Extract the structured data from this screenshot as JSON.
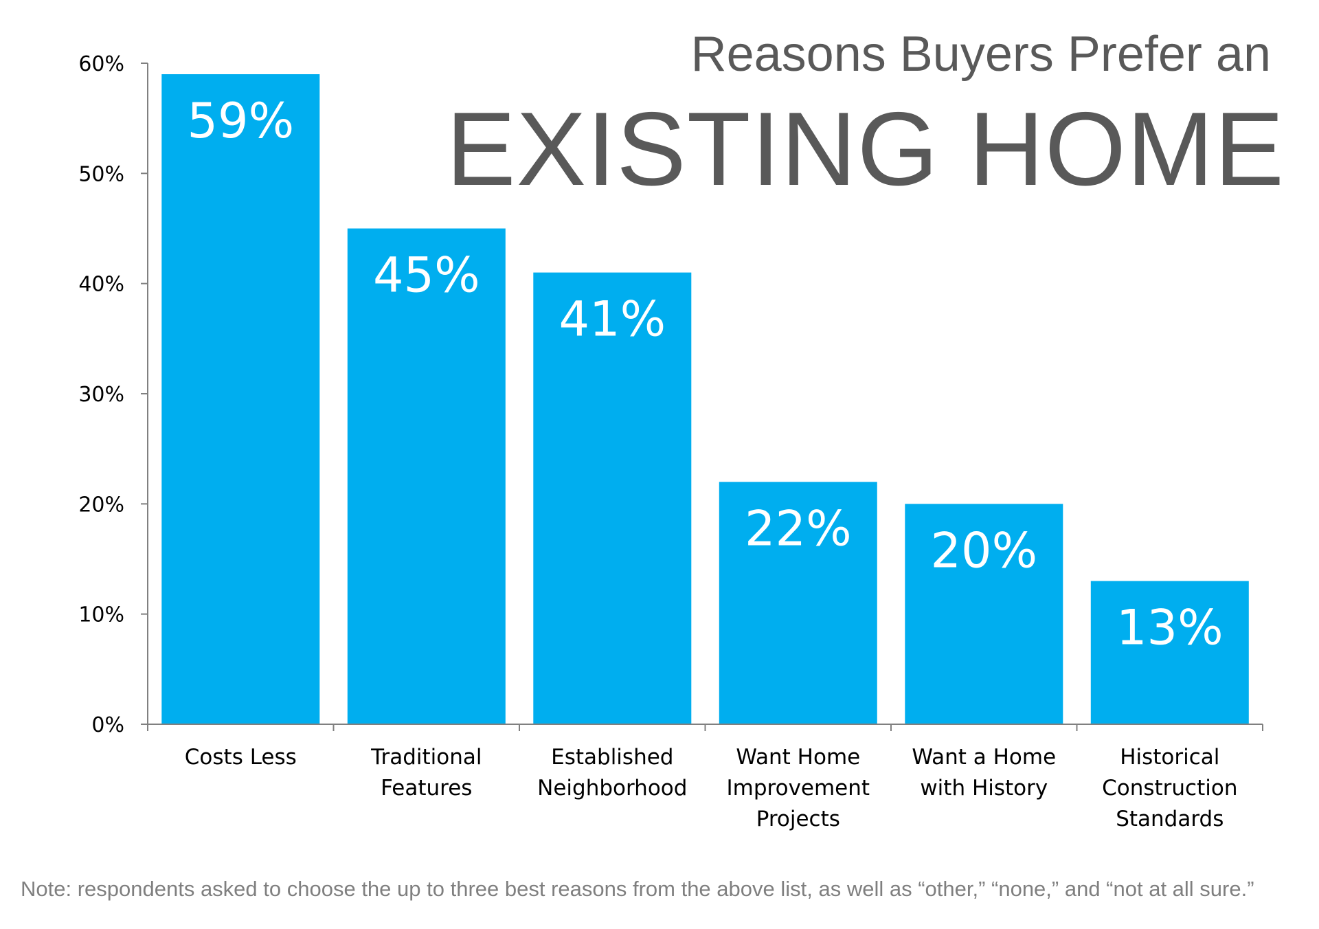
{
  "title": {
    "line1": "Reasons Buyers Prefer an",
    "line2": "EXISTING HOME"
  },
  "note": "Note: respondents asked to choose the up to three best reasons from the above list, as well as “other,” “none,” and “not at all sure.”",
  "colors": {
    "bar": "#00AEEF",
    "axis": "#808080",
    "title": "#595959",
    "note": "#7F7F7F"
  },
  "chart_data": {
    "type": "bar",
    "categories": [
      [
        "Costs Less"
      ],
      [
        "Traditional",
        "Features"
      ],
      [
        "Established",
        "Neighborhood"
      ],
      [
        "Want Home",
        "Improvement",
        "Projects"
      ],
      [
        "Want a Home",
        "with History"
      ],
      [
        "Historical",
        "Construction",
        "Standards"
      ]
    ],
    "values": [
      59,
      45,
      41,
      22,
      20,
      13
    ],
    "data_labels": [
      "59%",
      "45%",
      "41%",
      "22%",
      "20%",
      "13%"
    ],
    "y_ticks": [
      "0%",
      "10%",
      "20%",
      "30%",
      "40%",
      "50%",
      "60%"
    ],
    "ylim": [
      0,
      60
    ],
    "title": "Reasons Buyers Prefer an EXISTING HOME",
    "xlabel": "",
    "ylabel": "",
    "grid": false,
    "legend": "none"
  }
}
